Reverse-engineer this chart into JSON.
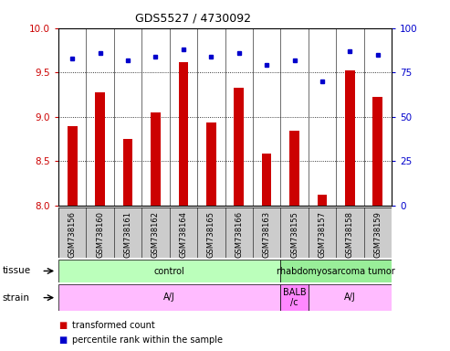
{
  "title": "GDS5527 / 4730092",
  "samples": [
    "GSM738156",
    "GSM738160",
    "GSM738161",
    "GSM738162",
    "GSM738164",
    "GSM738165",
    "GSM738166",
    "GSM738163",
    "GSM738155",
    "GSM738157",
    "GSM738158",
    "GSM738159"
  ],
  "transformed_count": [
    8.89,
    9.28,
    8.75,
    9.05,
    9.62,
    8.93,
    9.33,
    8.58,
    8.84,
    8.12,
    9.52,
    9.22
  ],
  "percentile_rank": [
    83,
    86,
    82,
    84,
    88,
    84,
    86,
    79,
    82,
    70,
    87,
    85
  ],
  "bar_color": "#cc0000",
  "dot_color": "#0000cc",
  "ylim_left": [
    8.0,
    10.0
  ],
  "ylim_right": [
    0,
    100
  ],
  "yticks_left": [
    8.0,
    8.5,
    9.0,
    9.5,
    10.0
  ],
  "yticks_right": [
    0,
    25,
    50,
    75,
    100
  ],
  "grid_lines": [
    8.5,
    9.0,
    9.5
  ],
  "tissue_groups": [
    {
      "label": "control",
      "start": 0,
      "end": 8,
      "color": "#bbffbb"
    },
    {
      "label": "rhabdomyosarcoma tumor",
      "start": 8,
      "end": 12,
      "color": "#99ee99"
    }
  ],
  "strain_groups": [
    {
      "label": "A/J",
      "start": 0,
      "end": 8,
      "color": "#ffbbff"
    },
    {
      "label": "BALB\n/c",
      "start": 8,
      "end": 9,
      "color": "#ff88ff"
    },
    {
      "label": "A/J",
      "start": 9,
      "end": 12,
      "color": "#ffbbff"
    }
  ],
  "legend_items": [
    {
      "color": "#cc0000",
      "label": "transformed count"
    },
    {
      "color": "#0000cc",
      "label": "percentile rank within the sample"
    }
  ],
  "left_tick_color": "#cc0000",
  "right_tick_color": "#0000cc",
  "tick_label_area_color": "#cccccc",
  "bar_width": 0.35
}
